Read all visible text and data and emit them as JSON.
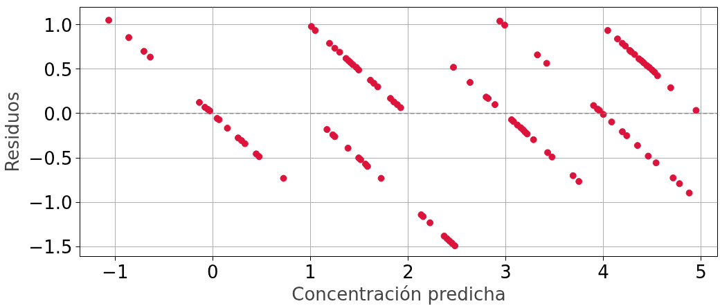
{
  "chart_data": {
    "type": "scatter",
    "xlabel": "Concentración predicha",
    "ylabel": "Residuos",
    "series": [
      {
        "color": "#dc143c",
        "x": [
          -1.065,
          -0.86,
          -0.705,
          -0.64,
          -0.137,
          -0.08,
          -0.05,
          -0.03,
          0.045,
          0.065,
          0.15,
          0.26,
          0.295,
          0.33,
          0.445,
          0.475,
          0.725,
          1.01,
          1.05,
          1.196,
          1.25,
          1.3,
          1.365,
          1.39,
          1.41,
          1.435,
          1.47,
          1.495,
          1.615,
          1.65,
          1.69,
          1.82,
          1.855,
          1.89,
          1.925,
          1.17,
          1.23,
          1.25,
          1.385,
          1.495,
          1.515,
          1.565,
          1.585,
          1.725,
          2.135,
          2.155,
          2.225,
          2.37,
          2.4,
          2.425,
          2.45,
          2.48,
          2.465,
          2.635,
          2.8,
          2.82,
          2.89,
          2.94,
          2.99,
          3.325,
          3.42,
          3.06,
          3.08,
          3.12,
          3.155,
          3.18,
          3.2,
          3.22,
          3.285,
          3.43,
          3.475,
          3.69,
          3.75,
          3.9,
          3.94,
          3.96,
          4.0,
          4.085,
          4.195,
          4.24,
          4.35,
          4.46,
          4.54,
          4.715,
          4.78,
          4.88,
          4.045,
          4.145,
          4.195,
          4.225,
          4.27,
          4.285,
          4.32,
          4.365,
          4.39,
          4.415,
          4.445,
          4.47,
          4.5,
          4.525,
          4.555,
          4.69,
          4.95
        ],
        "values": [
          1.05,
          0.855,
          0.7,
          0.635,
          0.125,
          0.07,
          0.047,
          0.03,
          -0.055,
          -0.07,
          -0.165,
          -0.275,
          -0.305,
          -0.34,
          -0.455,
          -0.485,
          -0.73,
          0.98,
          0.935,
          0.79,
          0.735,
          0.69,
          0.62,
          0.595,
          0.575,
          0.55,
          0.52,
          0.49,
          0.375,
          0.34,
          0.3,
          0.17,
          0.13,
          0.1,
          0.065,
          -0.18,
          -0.24,
          -0.26,
          -0.39,
          -0.5,
          -0.52,
          -0.57,
          -0.595,
          -0.73,
          -1.14,
          -1.16,
          -1.23,
          -1.38,
          -1.41,
          -1.435,
          -1.46,
          -1.49,
          0.52,
          0.35,
          0.185,
          0.17,
          0.1,
          1.04,
          0.995,
          0.66,
          0.565,
          -0.07,
          -0.09,
          -0.13,
          -0.16,
          -0.185,
          -0.21,
          -0.23,
          -0.295,
          -0.44,
          -0.49,
          -0.7,
          -0.765,
          0.09,
          0.05,
          0.035,
          -0.01,
          -0.095,
          -0.205,
          -0.25,
          -0.36,
          -0.48,
          -0.555,
          -0.725,
          -0.79,
          -0.895,
          0.935,
          0.84,
          0.79,
          0.76,
          0.71,
          0.695,
          0.665,
          0.615,
          0.595,
          0.57,
          0.54,
          0.52,
          0.49,
          0.465,
          0.425,
          0.29,
          0.035
        ]
      }
    ],
    "marker": "circle",
    "xlim": [
      -1.36,
      5.17
    ],
    "ylim": [
      -1.61,
      1.196
    ],
    "xticks": [
      {
        "value": -1,
        "label": "−1"
      },
      0,
      1,
      2,
      3,
      4,
      5
    ],
    "yticks": [
      {
        "value": -1.5,
        "label": "−1.5"
      },
      {
        "value": -1.0,
        "label": "−1.0"
      },
      {
        "value": -0.5,
        "label": "−0.5"
      },
      {
        "value": 0.0,
        "label": "0.0"
      },
      {
        "value": 0.5,
        "label": "0.5"
      },
      {
        "value": 1.0,
        "label": "1.0"
      }
    ],
    "grid": true,
    "ref_lines": [
      {
        "axis": "y",
        "value": 0,
        "color": "#808080",
        "line_style": "dashed"
      }
    ]
  }
}
